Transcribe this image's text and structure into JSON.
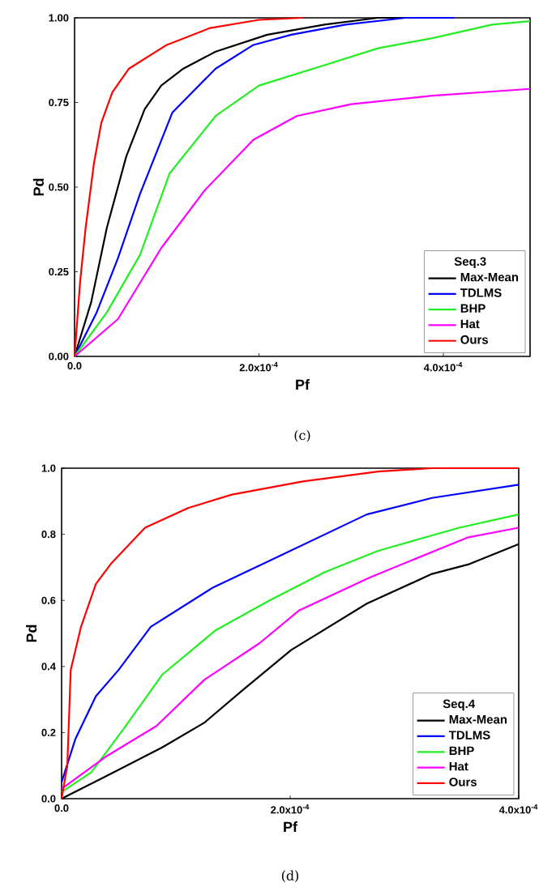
{
  "chart_data": [
    {
      "type": "line",
      "xlabel": "Pf",
      "ylabel": "Pd",
      "legend_title": "Seq.3",
      "annotations": [
        "(c)"
      ],
      "xlim": [
        0,
        0.000494
      ],
      "ylim": [
        0,
        1
      ],
      "xticks": [
        {
          "value": 0,
          "label": "0.0"
        },
        {
          "value": 0.0002,
          "label": "2.0x10$^{-4}$"
        },
        {
          "value": 0.0004,
          "label": "4.0x10$^{-4}$"
        }
      ],
      "yticks": [
        {
          "value": 0,
          "label": "0.00"
        },
        {
          "value": 0.25,
          "label": "0.25"
        },
        {
          "value": 0.5,
          "label": "0.50"
        },
        {
          "value": 0.75,
          "label": "0.75"
        },
        {
          "value": 1,
          "label": "1.00"
        }
      ],
      "legend": "bottom right",
      "grid": false,
      "marker": "none",
      "line_style": "solid",
      "series": [
        {
          "name": "Max-Mean",
          "color": "#000000",
          "x": [
            0,
            1.8e-05,
            3.5e-05,
            5.6e-05,
            7.6e-05,
            9.4e-05,
            0.000118,
            0.000153,
            0.000209,
            0.000271,
            0.000329,
            0.000359
          ],
          "values": [
            0,
            0.16,
            0.38,
            0.59,
            0.73,
            0.8,
            0.85,
            0.9,
            0.95,
            0.98,
            1.0,
            1.0
          ]
        },
        {
          "name": "TDLMS",
          "color": "#0000ff",
          "x": [
            0,
            2.4e-05,
            4.7e-05,
            7.1e-05,
            0.000106,
            0.000153,
            0.000194,
            0.000235,
            0.000294,
            0.000359,
            0.000412
          ],
          "values": [
            0,
            0.13,
            0.29,
            0.48,
            0.72,
            0.85,
            0.92,
            0.95,
            0.98,
            1.0,
            1.0
          ]
        },
        {
          "name": "BHP",
          "color": "#22ee22",
          "x": [
            0,
            3.5e-05,
            7.1e-05,
            0.000103,
            0.000153,
            0.0002,
            0.000271,
            0.000329,
            0.000388,
            0.000453,
            0.000494
          ],
          "values": [
            0,
            0.13,
            0.3,
            0.54,
            0.71,
            0.8,
            0.86,
            0.91,
            0.94,
            0.98,
            0.99
          ]
        },
        {
          "name": "Hat",
          "color": "#ff00ff",
          "x": [
            0,
            4.7e-05,
            9.4e-05,
            0.000141,
            0.000194,
            0.000241,
            0.0003,
            0.000388,
            0.000494
          ],
          "values": [
            0,
            0.11,
            0.32,
            0.49,
            0.64,
            0.71,
            0.745,
            0.77,
            0.79
          ]
        },
        {
          "name": "Ours",
          "color": "#ff0000",
          "x": [
            0,
            6e-06,
            1.2e-05,
            2.1e-05,
            2.9e-05,
            4.1e-05,
            5.9e-05,
            0.0001,
            0.000147,
            0.0002,
            0.000247
          ],
          "values": [
            0,
            0.22,
            0.38,
            0.57,
            0.69,
            0.78,
            0.85,
            0.92,
            0.97,
            0.994,
            1.0
          ]
        }
      ]
    },
    {
      "type": "line",
      "xlabel": "Pf",
      "ylabel": "Pd",
      "legend_title": "Seq.4",
      "annotations": [
        "(d)"
      ],
      "xlim": [
        0,
        0.0004
      ],
      "ylim": [
        0,
        1
      ],
      "xticks": [
        {
          "value": 0,
          "label": "0.0"
        },
        {
          "value": 0.0002,
          "label": "2.0x10$^{-4}$"
        },
        {
          "value": 0.0004,
          "label": "4.0x10$^{-4}$"
        }
      ],
      "yticks": [
        {
          "value": 0,
          "label": "0.0"
        },
        0.2,
        0.4,
        0.6,
        0.8,
        {
          "value": 1,
          "label": "1.0"
        }
      ],
      "legend": "bottom right",
      "grid": false,
      "marker": "none",
      "line_style": "solid",
      "series": [
        {
          "name": "Max-Mean",
          "color": "#000000",
          "x": [
            0,
            4e-05,
            8.8e-05,
            0.000125,
            0.000159,
            0.000201,
            0.000267,
            0.000324,
            0.000357,
            0.0004
          ],
          "values": [
            0,
            0.07,
            0.155,
            0.23,
            0.33,
            0.45,
            0.59,
            0.68,
            0.71,
            0.77
          ]
        },
        {
          "name": "TDLMS",
          "color": "#0000ff",
          "x": [
            0,
            1.2e-05,
            3e-05,
            5e-05,
            7.8e-05,
            0.000133,
            0.000182,
            0.000267,
            0.000324,
            0.0004
          ],
          "values": [
            0.05,
            0.18,
            0.31,
            0.39,
            0.52,
            0.64,
            0.72,
            0.86,
            0.91,
            0.95
          ]
        },
        {
          "name": "BHP",
          "color": "#22ee22",
          "x": [
            0,
            2.6e-05,
            5.4e-05,
            8.8e-05,
            0.000135,
            0.000182,
            0.00023,
            0.000277,
            0.000348,
            0.0004
          ],
          "values": [
            0.02,
            0.08,
            0.21,
            0.375,
            0.51,
            0.6,
            0.685,
            0.75,
            0.82,
            0.86
          ]
        },
        {
          "name": "Hat",
          "color": "#ff00ff",
          "x": [
            0,
            4e-05,
            8.3e-05,
            0.000125,
            0.000173,
            0.000208,
            0.00027,
            0.000355,
            0.0004
          ],
          "values": [
            0.03,
            0.13,
            0.22,
            0.36,
            0.47,
            0.57,
            0.67,
            0.79,
            0.82
          ]
        },
        {
          "name": "Ours",
          "color": "#ff0000",
          "x": [
            0,
            5e-06,
            8e-06,
            1.7e-05,
            3e-05,
            4.3e-05,
            7.3e-05,
            0.000111,
            0.000149,
            0.000211,
            0.000277,
            0.000324,
            0.0004
          ],
          "values": [
            0,
            0.1,
            0.39,
            0.52,
            0.65,
            0.71,
            0.82,
            0.88,
            0.92,
            0.96,
            0.99,
            1.0,
            1.0
          ]
        }
      ]
    }
  ]
}
